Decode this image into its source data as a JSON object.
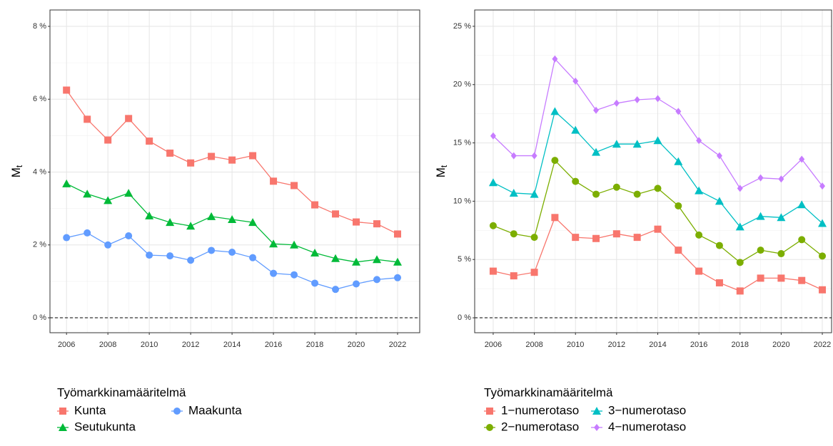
{
  "chart_data": [
    {
      "type": "line",
      "y_label": "M",
      "y_label_subscript": "t",
      "legend_title": "Työmarkkinamääritelmä",
      "x": [
        2006,
        2007,
        2008,
        2009,
        2010,
        2011,
        2012,
        2013,
        2014,
        2015,
        2016,
        2017,
        2018,
        2019,
        2020,
        2021,
        2022
      ],
      "xlim": [
        2005.2,
        2023.07
      ],
      "xticks": [
        2006,
        2008,
        2010,
        2012,
        2014,
        2016,
        2018,
        2020,
        2022
      ],
      "ylim": [
        -0.41,
        8.45
      ],
      "yticks": [
        {
          "value": 0,
          "label": "0 %"
        },
        {
          "value": 2,
          "label": "2 %"
        },
        {
          "value": 4,
          "label": "4 %"
        },
        {
          "value": 6,
          "label": "6 %"
        },
        {
          "value": 8,
          "label": "8 %"
        }
      ],
      "hline": 0,
      "grid": true,
      "series": [
        {
          "name": "Kunta",
          "color": "#F8766D",
          "shape": "square",
          "values": [
            6.25,
            5.45,
            4.88,
            5.47,
            4.85,
            4.52,
            4.25,
            4.43,
            4.33,
            4.45,
            3.75,
            3.63,
            3.1,
            2.85,
            2.63,
            2.58,
            2.3
          ]
        },
        {
          "name": "Seutukunta",
          "color": "#00BA38",
          "shape": "triangle",
          "values": [
            3.68,
            3.4,
            3.22,
            3.42,
            2.8,
            2.62,
            2.52,
            2.78,
            2.7,
            2.62,
            2.03,
            2.0,
            1.78,
            1.63,
            1.53,
            1.6,
            1.53
          ]
        },
        {
          "name": "Maakunta",
          "color": "#619CFF",
          "shape": "circle",
          "values": [
            2.2,
            2.33,
            2.0,
            2.25,
            1.72,
            1.7,
            1.58,
            1.85,
            1.8,
            1.65,
            1.22,
            1.18,
            0.95,
            0.78,
            0.93,
            1.05,
            1.1
          ]
        }
      ]
    },
    {
      "type": "line",
      "y_label": "M",
      "y_label_subscript": "t",
      "legend_title": "Työmarkkinamääritelmä",
      "x": [
        2006,
        2007,
        2008,
        2009,
        2010,
        2011,
        2012,
        2013,
        2014,
        2015,
        2016,
        2017,
        2018,
        2019,
        2020,
        2021,
        2022
      ],
      "xlim": [
        2005.1,
        2022.45
      ],
      "xticks": [
        2006,
        2008,
        2010,
        2012,
        2014,
        2016,
        2018,
        2020,
        2022
      ],
      "ylim": [
        -1.28,
        26.4
      ],
      "yticks": [
        {
          "value": 0,
          "label": "0 %"
        },
        {
          "value": 5,
          "label": "5 %"
        },
        {
          "value": 10,
          "label": "10 %"
        },
        {
          "value": 15,
          "label": "15 %"
        },
        {
          "value": 20,
          "label": "20 %"
        },
        {
          "value": 25,
          "label": "25 %"
        }
      ],
      "hline": 0,
      "grid": true,
      "series": [
        {
          "name": "1−numerotaso",
          "color": "#F8766D",
          "shape": "square",
          "values": [
            4.0,
            3.6,
            3.9,
            8.6,
            6.9,
            6.8,
            7.2,
            6.9,
            7.6,
            5.8,
            4.0,
            3.0,
            2.3,
            3.4,
            3.4,
            3.2,
            2.4
          ]
        },
        {
          "name": "2−numerotaso",
          "color": "#7CAE00",
          "shape": "circle",
          "values": [
            7.9,
            7.2,
            6.9,
            13.5,
            11.7,
            10.6,
            11.2,
            10.6,
            11.1,
            9.6,
            7.1,
            6.2,
            4.75,
            5.8,
            5.5,
            6.7,
            5.3
          ]
        },
        {
          "name": "3−numerotaso",
          "color": "#00BFC4",
          "shape": "triangle",
          "values": [
            11.6,
            10.7,
            10.6,
            17.7,
            16.1,
            14.2,
            14.9,
            14.9,
            15.2,
            13.4,
            10.9,
            10.0,
            7.8,
            8.7,
            8.6,
            9.7,
            8.1
          ]
        },
        {
          "name": "4−numerotaso",
          "color": "#C77CFF",
          "shape": "diamond",
          "values": [
            15.6,
            13.9,
            13.9,
            22.2,
            20.3,
            17.8,
            18.4,
            18.7,
            18.8,
            17.7,
            15.2,
            13.9,
            11.1,
            12.0,
            11.9,
            13.6,
            11.3
          ]
        }
      ]
    }
  ]
}
